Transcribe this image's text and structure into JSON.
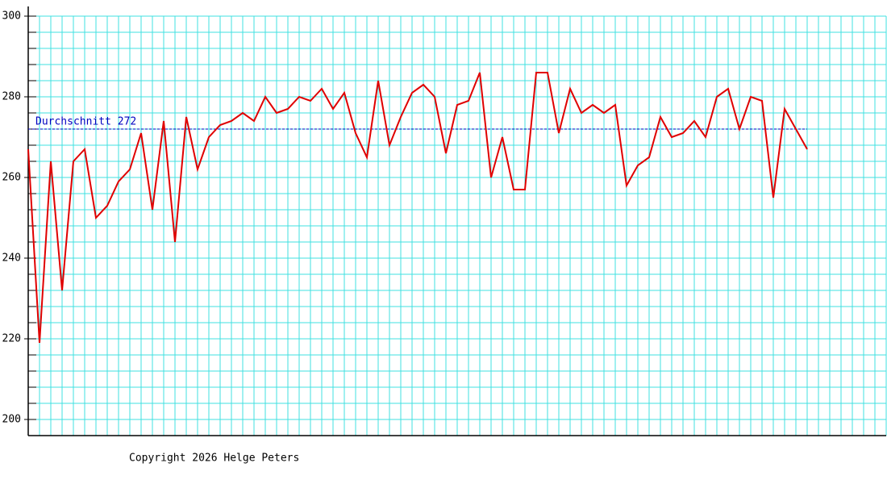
{
  "chart_data": {
    "type": "line",
    "x": [
      0,
      1,
      2,
      3,
      4,
      5,
      6,
      7,
      8,
      9,
      10,
      11,
      12,
      13,
      14,
      15,
      16,
      17,
      18,
      19,
      20,
      21,
      22,
      23,
      24,
      25,
      26,
      27,
      28,
      29,
      30,
      31,
      32,
      33,
      34,
      35,
      36,
      37,
      38,
      39,
      40,
      41,
      42,
      43,
      44,
      45,
      46,
      47,
      48,
      49,
      50,
      51,
      52,
      53,
      54,
      55,
      56,
      57,
      58,
      59,
      60,
      61,
      62,
      63,
      64,
      65,
      66,
      67,
      68,
      69
    ],
    "values": [
      267,
      219,
      264,
      232,
      264,
      267,
      250,
      253,
      259,
      262,
      271,
      252,
      274,
      244,
      275,
      262,
      270,
      273,
      274,
      276,
      274,
      280,
      276,
      277,
      280,
      279,
      282,
      277,
      281,
      271,
      265,
      284,
      268,
      275,
      281,
      283,
      280,
      266,
      278,
      279,
      286,
      260,
      270,
      257,
      257,
      286,
      286,
      271,
      282,
      276,
      278,
      276,
      278,
      258,
      263,
      265,
      275,
      270,
      271,
      274,
      270,
      280,
      282,
      272,
      280,
      279,
      255,
      277,
      272,
      267
    ],
    "color": "#e00000",
    "average": {
      "value": 272,
      "label": "Durchschnitt 272",
      "color": "#0000c0"
    },
    "xlim": [
      0,
      76
    ],
    "xticks": [
      0,
      1,
      2,
      3,
      4,
      5,
      6,
      7,
      8,
      9,
      10,
      11,
      12,
      13,
      14,
      15,
      16,
      17,
      18,
      19,
      20,
      21,
      22,
      23,
      24,
      25,
      26,
      27,
      28,
      29,
      30,
      31,
      32,
      33,
      34,
      35,
      36,
      37,
      38,
      39,
      40,
      41,
      42,
      43,
      44,
      45,
      46,
      47,
      48,
      49,
      50,
      51,
      52,
      53,
      54,
      55,
      56,
      57,
      58,
      59,
      60,
      61,
      62,
      63,
      64,
      65,
      66,
      67,
      68,
      69,
      70,
      71,
      72,
      73,
      74,
      75,
      76
    ],
    "ylim": [
      196,
      302.4
    ],
    "yticks": [
      200,
      220,
      240,
      260,
      280,
      300
    ],
    "yminor": [
      204,
      208,
      212,
      216,
      224,
      228,
      232,
      236,
      244,
      248,
      252,
      256,
      264,
      268,
      272,
      276,
      284,
      288,
      292,
      296
    ],
    "grid": true,
    "grid_color": "#40e0e0",
    "footer": "Copyright 2026 Helge Peters"
  }
}
